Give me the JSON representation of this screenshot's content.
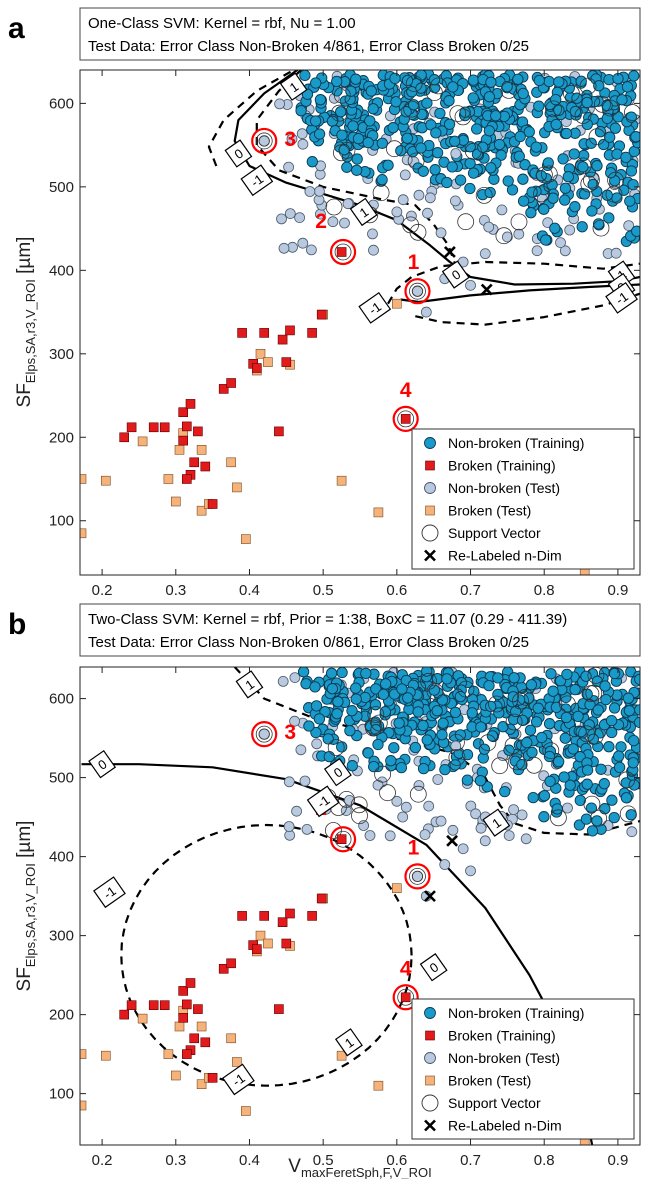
{
  "chart_data": [
    {
      "type": "scatter",
      "panel_letter": "a",
      "info_line1": "One-Class SVM: Kernel = rbf, Nu = 1.00",
      "info_line2": "Test Data: Error Class Non-Broken 4/861, Error Class Broken 0/25",
      "xlabel_main": "V",
      "xlabel_sub": "maxFeretSph,F,V_ROI",
      "ylabel_main": "SF",
      "ylabel_sub": "Elps,SA,r3,V_ROI",
      "ylabel_unit": " [µm]",
      "xlim": [
        0.17,
        0.93
      ],
      "ylim": [
        35,
        640
      ],
      "xticks": [
        0.2,
        0.3,
        0.4,
        0.5,
        0.6,
        0.7,
        0.8,
        0.9
      ],
      "xtick_labels": [
        "0.2",
        "0.3",
        "0.4",
        "0.5",
        "0.6",
        "0.7",
        "0.8",
        "0.9"
      ],
      "yticks": [
        100,
        200,
        300,
        400,
        500,
        600
      ],
      "ytick_labels": [
        "100",
        "200",
        "300",
        "400",
        "500",
        "600"
      ],
      "legend": {
        "position": "bottom-right",
        "entries": [
          "Non-broken (Training)",
          "Broken (Training)",
          "Non-broken (Test)",
          "Broken (Test)",
          "Support Vector",
          "Re-Labeled n-Dim"
        ]
      },
      "colors": {
        "nonbroken_training": "#1a9ac9",
        "broken_training": "#e31a1c",
        "nonbroken_test": "#b9c9e0",
        "broken_test": "#f5b27a",
        "annotation": "#ff0000"
      },
      "broken_training_points": [
        [
          0.24,
          212
        ],
        [
          0.27,
          212
        ],
        [
          0.285,
          212
        ],
        [
          0.31,
          230
        ],
        [
          0.315,
          213
        ],
        [
          0.32,
          240
        ],
        [
          0.33,
          207
        ],
        [
          0.31,
          196
        ],
        [
          0.325,
          170
        ],
        [
          0.32,
          155
        ],
        [
          0.315,
          150
        ],
        [
          0.34,
          165
        ],
        [
          0.365,
          258
        ],
        [
          0.375,
          265
        ],
        [
          0.39,
          325
        ],
        [
          0.405,
          288
        ],
        [
          0.41,
          283
        ],
        [
          0.42,
          325
        ],
        [
          0.445,
          317
        ],
        [
          0.455,
          328
        ],
        [
          0.44,
          207
        ],
        [
          0.485,
          325
        ],
        [
          0.35,
          120
        ],
        [
          0.23,
          200
        ],
        [
          0.45,
          290
        ],
        [
          0.498,
          347
        ],
        [
          0.525,
          422
        ],
        [
          0.612,
          222
        ]
      ],
      "broken_test_points": [
        [
          0.172,
          150
        ],
        [
          0.172,
          85
        ],
        [
          0.205,
          148
        ],
        [
          0.255,
          195
        ],
        [
          0.29,
          150
        ],
        [
          0.3,
          123
        ],
        [
          0.305,
          185
        ],
        [
          0.31,
          205
        ],
        [
          0.335,
          185
        ],
        [
          0.335,
          112
        ],
        [
          0.345,
          120
        ],
        [
          0.375,
          170
        ],
        [
          0.383,
          140
        ],
        [
          0.395,
          78
        ],
        [
          0.415,
          300
        ],
        [
          0.41,
          280
        ],
        [
          0.425,
          290
        ],
        [
          0.455,
          287
        ],
        [
          0.5,
          347
        ],
        [
          0.525,
          148
        ],
        [
          0.575,
          110
        ],
        [
          0.6,
          360
        ],
        [
          0.855,
          40
        ]
      ],
      "annotations": [
        {
          "label": "1",
          "x": 0.628,
          "y": 375
        },
        {
          "label": "2",
          "x": 0.527,
          "y": 422
        },
        {
          "label": "3",
          "x": 0.42,
          "y": 555
        },
        {
          "label": "4",
          "x": 0.612,
          "y": 222
        }
      ],
      "relabeled_points": [
        [
          0.672,
          422
        ],
        [
          0.722,
          377
        ]
      ],
      "contour_labels": [
        "1",
        "0",
        "-1",
        "1",
        "0",
        "-1",
        "1",
        "0",
        "-1"
      ]
    },
    {
      "type": "scatter",
      "panel_letter": "b",
      "info_line1": "Two-Class SVM: Kernel = rbf, Prior = 1:38, BoxC = 11.07 (0.29 - 411.39)",
      "info_line2": "Test Data: Error Class Non-Broken 0/861, Error Class Broken 0/25",
      "xlabel_main": "V",
      "xlabel_sub": "maxFeretSph,F,V_ROI",
      "ylabel_main": "SF",
      "ylabel_sub": "Elps,SA,r3,V_ROI",
      "ylabel_unit": " [µm]",
      "xlim": [
        0.17,
        0.93
      ],
      "ylim": [
        35,
        640
      ],
      "xticks": [
        0.2,
        0.3,
        0.4,
        0.5,
        0.6,
        0.7,
        0.8,
        0.9
      ],
      "xtick_labels": [
        "0.2",
        "0.3",
        "0.4",
        "0.5",
        "0.6",
        "0.7",
        "0.8",
        "0.9"
      ],
      "yticks": [
        100,
        200,
        300,
        400,
        500,
        600
      ],
      "ytick_labels": [
        "100",
        "200",
        "300",
        "400",
        "500",
        "600"
      ],
      "legend": {
        "position": "bottom-right",
        "entries": [
          "Non-broken (Training)",
          "Broken (Training)",
          "Non-broken (Test)",
          "Broken (Test)",
          "Support Vector",
          "Re-Labeled n-Dim"
        ]
      },
      "colors": {
        "nonbroken_training": "#1a9ac9",
        "broken_training": "#e31a1c",
        "nonbroken_test": "#b9c9e0",
        "broken_test": "#f5b27a",
        "annotation": "#ff0000"
      },
      "broken_training_points": [
        [
          0.24,
          212
        ],
        [
          0.27,
          212
        ],
        [
          0.285,
          212
        ],
        [
          0.31,
          230
        ],
        [
          0.315,
          213
        ],
        [
          0.32,
          240
        ],
        [
          0.33,
          207
        ],
        [
          0.31,
          196
        ],
        [
          0.325,
          170
        ],
        [
          0.32,
          155
        ],
        [
          0.315,
          150
        ],
        [
          0.34,
          165
        ],
        [
          0.365,
          258
        ],
        [
          0.375,
          265
        ],
        [
          0.39,
          325
        ],
        [
          0.405,
          288
        ],
        [
          0.41,
          283
        ],
        [
          0.42,
          325
        ],
        [
          0.445,
          317
        ],
        [
          0.455,
          328
        ],
        [
          0.44,
          207
        ],
        [
          0.485,
          325
        ],
        [
          0.35,
          120
        ],
        [
          0.23,
          200
        ],
        [
          0.45,
          290
        ],
        [
          0.498,
          347
        ],
        [
          0.525,
          422
        ],
        [
          0.612,
          222
        ]
      ],
      "broken_test_points": [
        [
          0.172,
          150
        ],
        [
          0.172,
          85
        ],
        [
          0.205,
          148
        ],
        [
          0.255,
          195
        ],
        [
          0.29,
          150
        ],
        [
          0.3,
          123
        ],
        [
          0.305,
          185
        ],
        [
          0.31,
          205
        ],
        [
          0.335,
          185
        ],
        [
          0.335,
          112
        ],
        [
          0.345,
          120
        ],
        [
          0.375,
          170
        ],
        [
          0.383,
          140
        ],
        [
          0.395,
          78
        ],
        [
          0.415,
          300
        ],
        [
          0.41,
          280
        ],
        [
          0.425,
          290
        ],
        [
          0.455,
          287
        ],
        [
          0.5,
          347
        ],
        [
          0.525,
          148
        ],
        [
          0.575,
          110
        ],
        [
          0.6,
          360
        ],
        [
          0.855,
          40
        ]
      ],
      "annotations": [
        {
          "label": "1",
          "x": 0.628,
          "y": 375
        },
        {
          "label": "2",
          "x": 0.527,
          "y": 422
        },
        {
          "label": "3",
          "x": 0.42,
          "y": 555
        },
        {
          "label": "4",
          "x": 0.612,
          "y": 222
        }
      ],
      "relabeled_points": [
        [
          0.675,
          420
        ],
        [
          0.645,
          350
        ]
      ],
      "contour_labels": [
        "1",
        "0",
        "0",
        "0",
        "1",
        "-1",
        "-1",
        "-1",
        "1"
      ]
    }
  ]
}
